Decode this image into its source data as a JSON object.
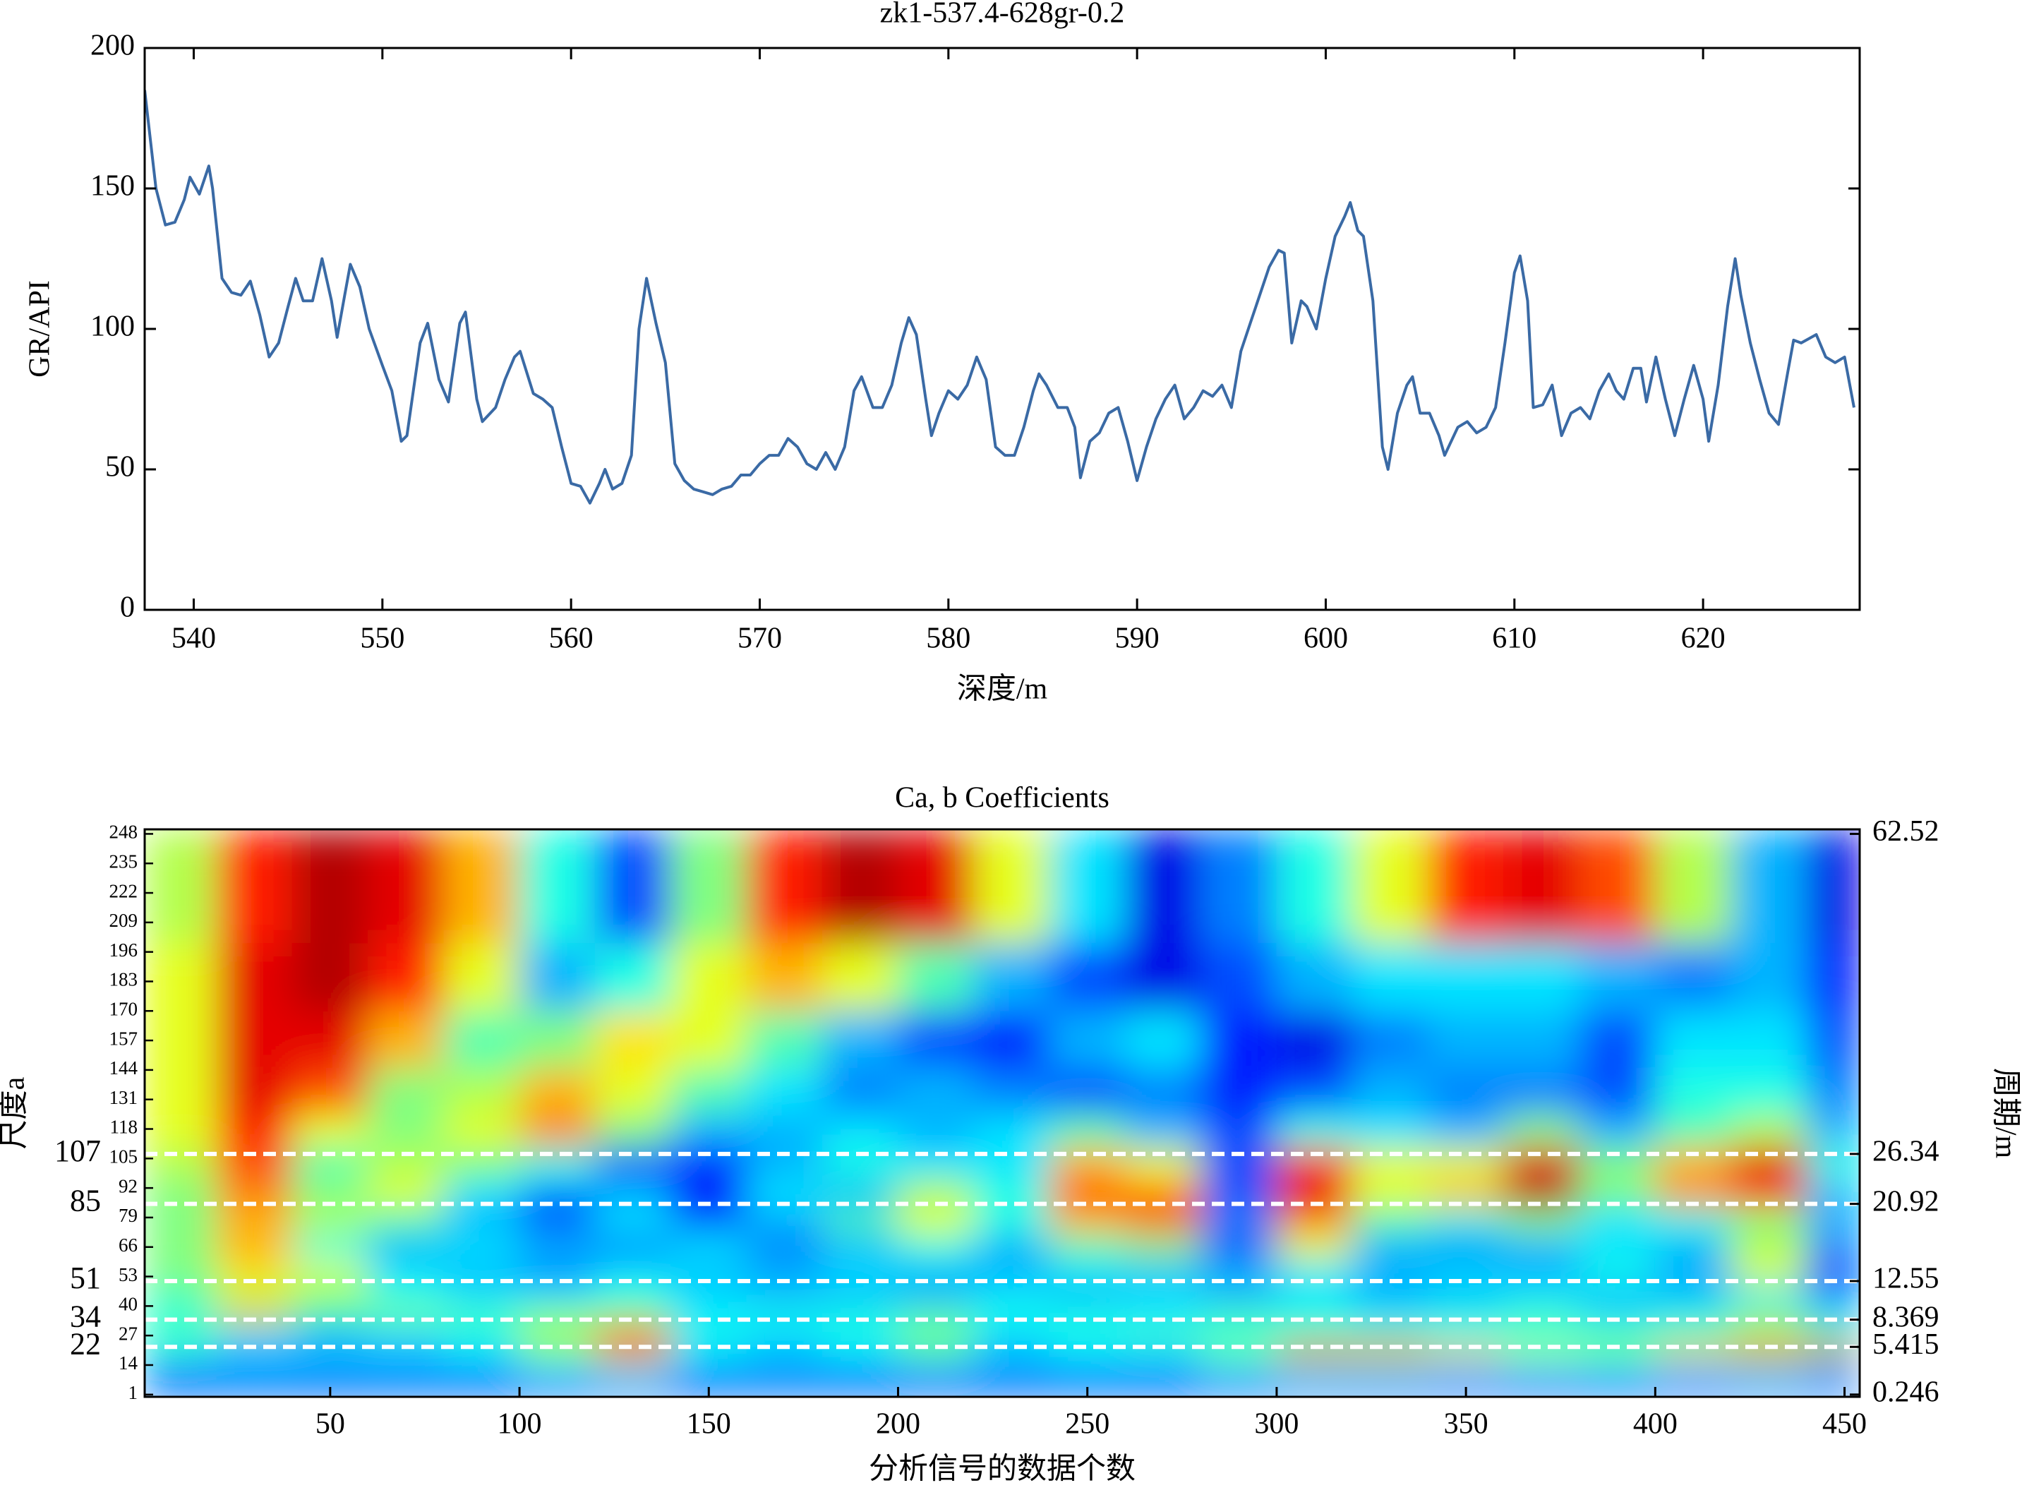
{
  "chart_data": [
    {
      "type": "line",
      "title": "zk1-537.4-628gr-0.2",
      "x_label": "深度/m",
      "y_label": "GR/API",
      "color": "#3a6aa5",
      "xlim": [
        537.4,
        628.3
      ],
      "xticks": [
        540,
        550,
        560,
        570,
        580,
        590,
        600,
        610,
        620
      ],
      "ylim": [
        0,
        200
      ],
      "yticks": [
        0,
        50,
        100,
        150,
        200
      ],
      "x": [
        537.4,
        538,
        538.5,
        539,
        539.5,
        539.8,
        540.3,
        540.8,
        541,
        541.5,
        542,
        542.5,
        543,
        543.5,
        544,
        544.5,
        545,
        545.4,
        545.8,
        546.3,
        546.8,
        547.3,
        547.6,
        548,
        548.3,
        548.8,
        549.3,
        550,
        550.5,
        551,
        551.3,
        552,
        552.4,
        553,
        553.5,
        554.1,
        554.4,
        555,
        555.3,
        556,
        556.5,
        557,
        557.3,
        558,
        558.5,
        559,
        559.5,
        560,
        560.5,
        561,
        561.5,
        561.8,
        562.2,
        562.7,
        563.2,
        563.6,
        564,
        564.5,
        565,
        565.5,
        566,
        566.5,
        567,
        567.5,
        568,
        568.5,
        569,
        569.5,
        570,
        570.5,
        571,
        571.5,
        572,
        572.5,
        573,
        573.5,
        574,
        574.5,
        575,
        575.4,
        576,
        576.5,
        577,
        577.5,
        577.9,
        578.3,
        578.8,
        579.1,
        579.5,
        580,
        580.5,
        581,
        581.5,
        582,
        582.5,
        583,
        583.5,
        584,
        584.5,
        584.8,
        585.2,
        585.8,
        586.3,
        586.7,
        587,
        587.5,
        588,
        588.5,
        589,
        589.5,
        590,
        590.5,
        591,
        591.5,
        592,
        592.5,
        593,
        593.5,
        594,
        594.5,
        595,
        595.5,
        596,
        596.5,
        597,
        597.5,
        597.8,
        598.2,
        598.7,
        599,
        599.5,
        600,
        600.5,
        601,
        601.3,
        601.7,
        602,
        602.5,
        603,
        603.3,
        603.8,
        604.3,
        604.6,
        605,
        605.5,
        606,
        606.3,
        607,
        607.5,
        608,
        608.5,
        609,
        609.5,
        610,
        610.3,
        610.7,
        611,
        611.5,
        612,
        612.5,
        613,
        613.5,
        614,
        614.5,
        615,
        615.4,
        615.8,
        616.3,
        616.7,
        617,
        617.5,
        618,
        618.5,
        619,
        619.5,
        620,
        620.3,
        620.8,
        621.3,
        621.7,
        622,
        622.5,
        623,
        623.5,
        624,
        624.5,
        624.8,
        625.2,
        626,
        626.5,
        627,
        627.5,
        628
      ],
      "values": [
        185,
        150,
        137,
        138,
        146,
        154,
        148,
        158,
        150,
        118,
        113,
        112,
        117,
        105,
        90,
        95,
        108,
        118,
        110,
        110,
        125,
        110,
        97,
        112,
        123,
        115,
        100,
        87,
        78,
        60,
        62,
        95,
        102,
        82,
        74,
        102,
        106,
        75,
        67,
        72,
        82,
        90,
        92,
        77,
        75,
        72,
        58,
        45,
        44,
        38,
        45,
        50,
        43,
        45,
        55,
        100,
        118,
        102,
        88,
        52,
        46,
        43,
        42,
        41,
        43,
        44,
        48,
        48,
        52,
        55,
        55,
        61,
        58,
        52,
        50,
        56,
        50,
        58,
        78,
        83,
        72,
        72,
        80,
        95,
        104,
        98,
        75,
        62,
        70,
        78,
        75,
        80,
        90,
        82,
        58,
        55,
        55,
        65,
        78,
        84,
        80,
        72,
        72,
        65,
        47,
        60,
        63,
        70,
        72,
        60,
        46,
        58,
        68,
        75,
        80,
        68,
        72,
        78,
        76,
        80,
        72,
        92,
        102,
        112,
        122,
        128,
        127,
        95,
        110,
        108,
        100,
        118,
        133,
        140,
        145,
        135,
        133,
        110,
        58,
        50,
        70,
        80,
        83,
        70,
        70,
        62,
        55,
        65,
        67,
        63,
        65,
        72,
        95,
        120,
        126,
        110,
        72,
        73,
        80,
        62,
        70,
        72,
        68,
        78,
        84,
        78,
        75,
        86,
        86,
        74,
        90,
        75,
        62,
        75,
        87,
        75,
        60,
        80,
        108,
        125,
        112,
        95,
        82,
        70,
        66,
        85,
        96,
        95,
        98,
        90,
        88,
        90,
        72
      ]
    },
    {
      "type": "heatmap",
      "title": "Ca, b Coefficients",
      "x_label": "分析信号的数据个数",
      "y_label": "尺度a",
      "y2_label": "周期/m",
      "xlim": [
        1,
        454
      ],
      "xticks": [
        50,
        100,
        150,
        200,
        250,
        300,
        350,
        400,
        450
      ],
      "ylim": [
        0,
        250
      ],
      "yticks": [
        1,
        14,
        27,
        40,
        53,
        66,
        79,
        92,
        105,
        118,
        131,
        144,
        157,
        170,
        183,
        196,
        209,
        222,
        235,
        248
      ],
      "highlight_scales": [
        22,
        34,
        51,
        85,
        107
      ],
      "y2ticks": [
        62.52,
        26.34,
        20.92,
        12.55,
        8.369,
        5.415,
        0.246
      ],
      "y2ticks_scale": [
        248,
        107,
        85,
        51,
        34,
        22,
        1
      ],
      "colormap": "jet",
      "xbins": [
        1,
        20,
        40,
        60,
        80,
        100,
        120,
        140,
        160,
        180,
        200,
        220,
        240,
        260,
        280,
        300,
        320,
        340,
        360,
        380,
        400,
        420,
        440,
        454
      ],
      "ybins": [
        0,
        8,
        16,
        24,
        32,
        40,
        50,
        60,
        72,
        84,
        96,
        110,
        125,
        145,
        170,
        200,
        250
      ],
      "z": [
        [
          0.22,
          0.2,
          0.18,
          0.2,
          0.18,
          0.2,
          0.22,
          0.18,
          0.2,
          0.18,
          0.2,
          0.18,
          0.2,
          0.18,
          0.2,
          0.22,
          0.2,
          0.2,
          0.18,
          0.2,
          0.2,
          0.22,
          0.2
        ],
        [
          0.25,
          0.3,
          0.3,
          0.3,
          0.3,
          0.35,
          0.4,
          0.3,
          0.3,
          0.3,
          0.3,
          0.3,
          0.3,
          0.3,
          0.35,
          0.4,
          0.4,
          0.35,
          0.35,
          0.35,
          0.35,
          0.4,
          0.35
        ],
        [
          0.4,
          0.3,
          0.3,
          0.3,
          0.35,
          0.5,
          0.8,
          0.35,
          0.3,
          0.35,
          0.45,
          0.3,
          0.35,
          0.35,
          0.5,
          0.85,
          0.8,
          0.7,
          0.55,
          0.5,
          0.7,
          0.85,
          0.9
        ],
        [
          0.45,
          0.35,
          0.3,
          0.35,
          0.4,
          0.55,
          0.75,
          0.4,
          0.35,
          0.4,
          0.5,
          0.35,
          0.4,
          0.45,
          0.4,
          0.45,
          0.45,
          0.4,
          0.4,
          0.45,
          0.45,
          0.55,
          0.45
        ],
        [
          0.4,
          0.7,
          0.45,
          0.5,
          0.45,
          0.5,
          0.5,
          0.35,
          0.4,
          0.4,
          0.45,
          0.4,
          0.4,
          0.35,
          0.45,
          0.4,
          0.35,
          0.4,
          0.45,
          0.35,
          0.4,
          0.5,
          0.35
        ],
        [
          0.45,
          0.55,
          0.5,
          0.4,
          0.35,
          0.35,
          0.4,
          0.35,
          0.3,
          0.3,
          0.3,
          0.35,
          0.3,
          0.35,
          0.3,
          0.35,
          0.3,
          0.3,
          0.35,
          0.3,
          0.3,
          0.35,
          0.25
        ],
        [
          0.5,
          0.65,
          0.6,
          0.35,
          0.3,
          0.25,
          0.35,
          0.3,
          0.3,
          0.35,
          0.3,
          0.3,
          0.35,
          0.3,
          0.3,
          0.35,
          0.3,
          0.35,
          0.3,
          0.4,
          0.3,
          0.6,
          0.2
        ],
        [
          0.5,
          0.7,
          0.4,
          0.3,
          0.35,
          0.3,
          0.25,
          0.35,
          0.25,
          0.3,
          0.4,
          0.3,
          0.45,
          0.5,
          0.2,
          0.6,
          0.3,
          0.25,
          0.3,
          0.35,
          0.3,
          0.55,
          0.25
        ],
        [
          0.5,
          0.7,
          0.55,
          0.45,
          0.3,
          0.2,
          0.35,
          0.2,
          0.3,
          0.45,
          0.6,
          0.4,
          0.7,
          0.8,
          0.25,
          0.75,
          0.45,
          0.4,
          0.5,
          0.35,
          0.4,
          0.5,
          0.3
        ],
        [
          0.5,
          0.75,
          0.5,
          0.6,
          0.35,
          0.25,
          0.3,
          0.15,
          0.35,
          0.3,
          0.55,
          0.4,
          0.8,
          0.75,
          0.2,
          0.9,
          0.6,
          0.7,
          0.95,
          0.5,
          0.75,
          0.85,
          0.3
        ],
        [
          0.55,
          0.8,
          0.45,
          0.55,
          0.5,
          0.4,
          0.2,
          0.15,
          0.3,
          0.4,
          0.35,
          0.35,
          0.7,
          0.6,
          0.2,
          0.85,
          0.6,
          0.6,
          0.9,
          0.5,
          0.7,
          0.9,
          0.4
        ],
        [
          0.6,
          0.85,
          0.6,
          0.5,
          0.6,
          0.75,
          0.5,
          0.3,
          0.3,
          0.35,
          0.3,
          0.35,
          0.45,
          0.3,
          0.2,
          0.4,
          0.35,
          0.3,
          0.5,
          0.3,
          0.45,
          0.55,
          0.3
        ],
        [
          0.6,
          0.9,
          0.8,
          0.5,
          0.55,
          0.7,
          0.6,
          0.45,
          0.35,
          0.25,
          0.3,
          0.25,
          0.2,
          0.25,
          0.15,
          0.2,
          0.3,
          0.25,
          0.25,
          0.2,
          0.4,
          0.4,
          0.25
        ],
        [
          0.6,
          0.9,
          0.9,
          0.7,
          0.45,
          0.5,
          0.65,
          0.6,
          0.45,
          0.3,
          0.2,
          0.15,
          0.3,
          0.35,
          0.15,
          0.1,
          0.25,
          0.3,
          0.3,
          0.2,
          0.35,
          0.35,
          0.2
        ],
        [
          0.6,
          0.9,
          0.95,
          0.85,
          0.6,
          0.3,
          0.4,
          0.6,
          0.7,
          0.6,
          0.45,
          0.3,
          0.2,
          0.1,
          0.2,
          0.3,
          0.35,
          0.35,
          0.35,
          0.3,
          0.25,
          0.3,
          0.15
        ],
        [
          0.55,
          0.85,
          0.95,
          0.9,
          0.7,
          0.4,
          0.2,
          0.5,
          0.85,
          0.95,
          0.9,
          0.6,
          0.35,
          0.1,
          0.25,
          0.4,
          0.6,
          0.85,
          0.9,
          0.8,
          0.55,
          0.3,
          0.1
        ]
      ]
    }
  ]
}
